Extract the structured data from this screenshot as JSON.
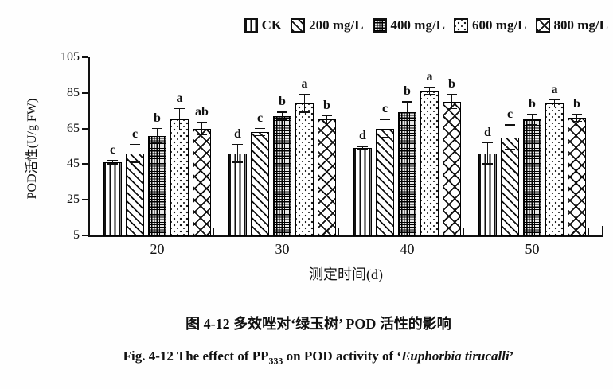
{
  "colors": {
    "ink": "#111111",
    "paper": "#ffffff"
  },
  "figure": {
    "caption_zh": "图 4-12 多效唑对‘绿玉树’ POD 活性的影响",
    "caption_en_prefix": "Fig. 4-12 The effect of PP",
    "caption_en_sub": "333",
    "caption_en_mid": " on POD activity of ‘",
    "caption_en_species": "Euphorbia tirucalli",
    "caption_en_suffix": "’"
  },
  "chart_data": {
    "type": "bar",
    "title": "",
    "xlabel": "测定时间(d)",
    "ylabel": "POD活性(U/g FW)",
    "ylim": [
      5,
      105
    ],
    "yticks": [
      5,
      25,
      45,
      65,
      85,
      105
    ],
    "categories": [
      "20",
      "30",
      "40",
      "50"
    ],
    "grid": false,
    "legend_position": "top-right",
    "error_bars": true,
    "series": [
      {
        "name": "CK",
        "pattern": "vertical-lines",
        "values": [
          46,
          51,
          54,
          51
        ],
        "errors": [
          1,
          5,
          1,
          6
        ],
        "sig_letters": [
          "c",
          "d",
          "d",
          "d"
        ]
      },
      {
        "name": "200 mg/L",
        "pattern": "diagonal-lines",
        "values": [
          51,
          63,
          65,
          60
        ],
        "errors": [
          5,
          2,
          5,
          7
        ],
        "sig_letters": [
          "c",
          "c",
          "c",
          "c"
        ]
      },
      {
        "name": "400 mg/L",
        "pattern": "dense-grid",
        "values": [
          61,
          72,
          74,
          70
        ],
        "errors": [
          4,
          2,
          6,
          3
        ],
        "sig_letters": [
          "b",
          "b",
          "b",
          "b"
        ]
      },
      {
        "name": "600 mg/L",
        "pattern": "dots",
        "values": [
          70,
          79,
          86,
          79
        ],
        "errors": [
          6,
          5,
          2,
          2
        ],
        "sig_letters": [
          "a",
          "a",
          "a",
          "a"
        ]
      },
      {
        "name": "800 mg/L",
        "pattern": "diamond-lattice",
        "values": [
          65,
          70,
          80,
          71
        ],
        "errors": [
          3.5,
          2,
          4,
          2
        ],
        "sig_letters": [
          "ab",
          "b",
          "b",
          "b"
        ]
      }
    ]
  }
}
